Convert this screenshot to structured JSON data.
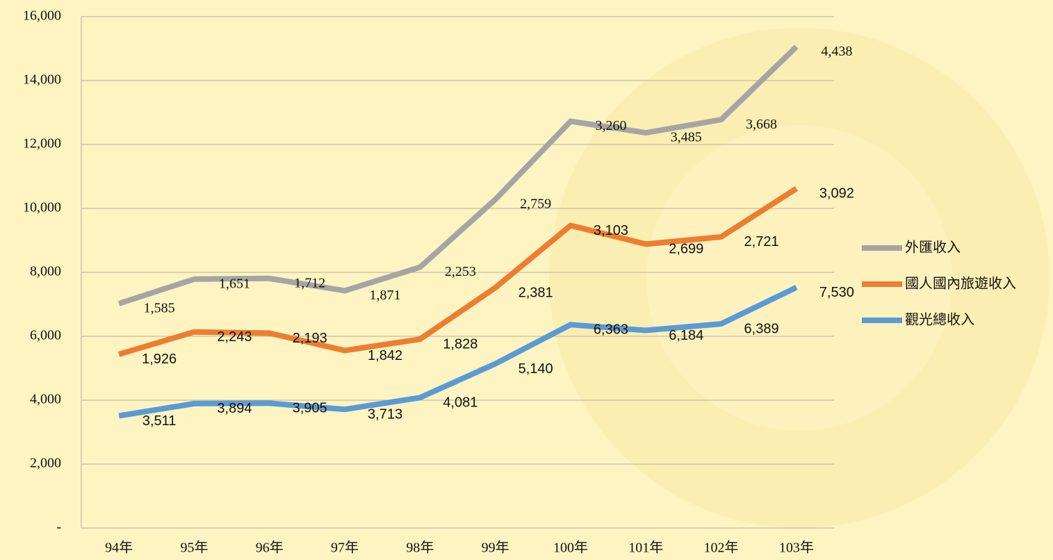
{
  "chart_data": {
    "type": "line",
    "stacked": true,
    "categories": [
      "94年",
      "95年",
      "96年",
      "97年",
      "98年",
      "99年",
      "100年",
      "101年",
      "102年",
      "103年"
    ],
    "series": [
      {
        "name": "外匯收入",
        "color": "#a5a5a5",
        "values": [
          1585,
          1651,
          1712,
          1871,
          2253,
          2759,
          3260,
          3485,
          3668,
          4438
        ],
        "value_labels": [
          "1,585",
          "1,651",
          "1,712",
          "1,871",
          "2,253",
          "2,759",
          "3,260",
          "3,485",
          "3,668",
          "4,438"
        ]
      },
      {
        "name": "國人國內旅遊收入",
        "color": "#ed7d31",
        "values": [
          1926,
          2243,
          2193,
          1842,
          1828,
          2381,
          3103,
          2699,
          2721,
          3092
        ],
        "value_labels": [
          "1,926",
          "2,243",
          "2,193",
          "1,842",
          "1,828",
          "2,381",
          "3,103",
          "2,699",
          "2,721",
          "3,092"
        ]
      },
      {
        "name": "觀光總收入",
        "color": "#5b9bd5",
        "values": [
          3511,
          3894,
          3905,
          3713,
          4081,
          5140,
          6363,
          6184,
          6389,
          7530
        ],
        "value_labels": [
          "3,511",
          "3,894",
          "3,905",
          "3,713",
          "4,081",
          "5,140",
          "6,363",
          "6,184",
          "6,389",
          "7,530"
        ]
      }
    ],
    "ylim": [
      0,
      16000
    ],
    "yticks": [
      {
        "value": 0,
        "label": "-"
      },
      {
        "value": 2000,
        "label": "2,000"
      },
      {
        "value": 4000,
        "label": "4,000"
      },
      {
        "value": 6000,
        "label": "6,000"
      },
      {
        "value": 8000,
        "label": "8,000"
      },
      {
        "value": 10000,
        "label": "10,000"
      },
      {
        "value": 12000,
        "label": "12,000"
      },
      {
        "value": 14000,
        "label": "14,000"
      },
      {
        "value": 16000,
        "label": "16,000"
      }
    ],
    "grid": true,
    "legend": "right"
  }
}
